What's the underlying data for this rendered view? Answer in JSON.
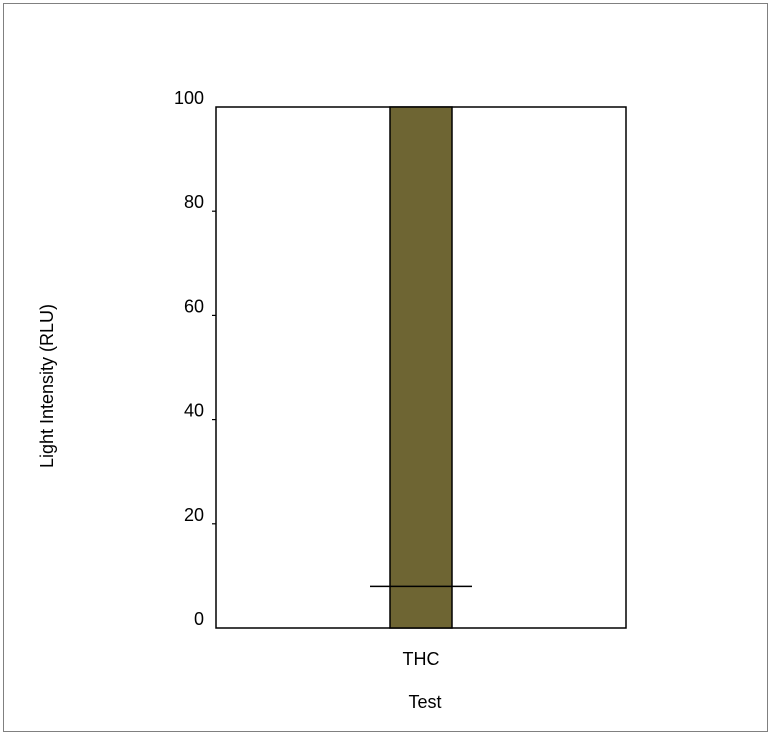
{
  "chart_data": {
    "type": "bar",
    "title": "",
    "xlabel": "Test",
    "ylabel": "Light Intensity (RLU)",
    "categories": [
      "THC"
    ],
    "values": [
      100
    ],
    "reference_line": 8,
    "ylim": [
      0,
      100
    ],
    "yticks": [
      0,
      20,
      40,
      60,
      80,
      100
    ],
    "grid": false,
    "legend": "none",
    "colors": {
      "bar": "#6e6533",
      "axis": "#000000",
      "frame": "#808080"
    }
  }
}
